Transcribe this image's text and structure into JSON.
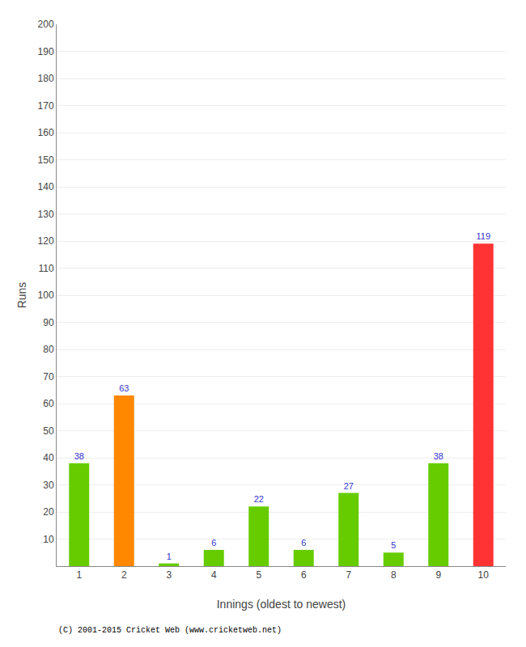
{
  "chart_data": {
    "type": "bar",
    "xlabel": "Innings (oldest to newest)",
    "ylabel": "Runs",
    "categories": [
      "1",
      "2",
      "3",
      "4",
      "5",
      "6",
      "7",
      "8",
      "9",
      "10"
    ],
    "values": [
      38,
      63,
      1,
      6,
      22,
      6,
      27,
      5,
      38,
      119
    ],
    "colors": [
      "#66cc00",
      "#ff8800",
      "#66cc00",
      "#66cc00",
      "#66cc00",
      "#66cc00",
      "#66cc00",
      "#66cc00",
      "#66cc00",
      "#ff3333"
    ],
    "ylim": [
      0,
      200
    ],
    "yticks": [
      10,
      20,
      30,
      40,
      50,
      60,
      70,
      80,
      90,
      100,
      110,
      120,
      130,
      140,
      150,
      160,
      170,
      180,
      190,
      200
    ],
    "grid": true,
    "data_labels": true,
    "annotations": [
      "(C) 2001-2015 Cricket Web (www.cricketweb.net)"
    ]
  }
}
